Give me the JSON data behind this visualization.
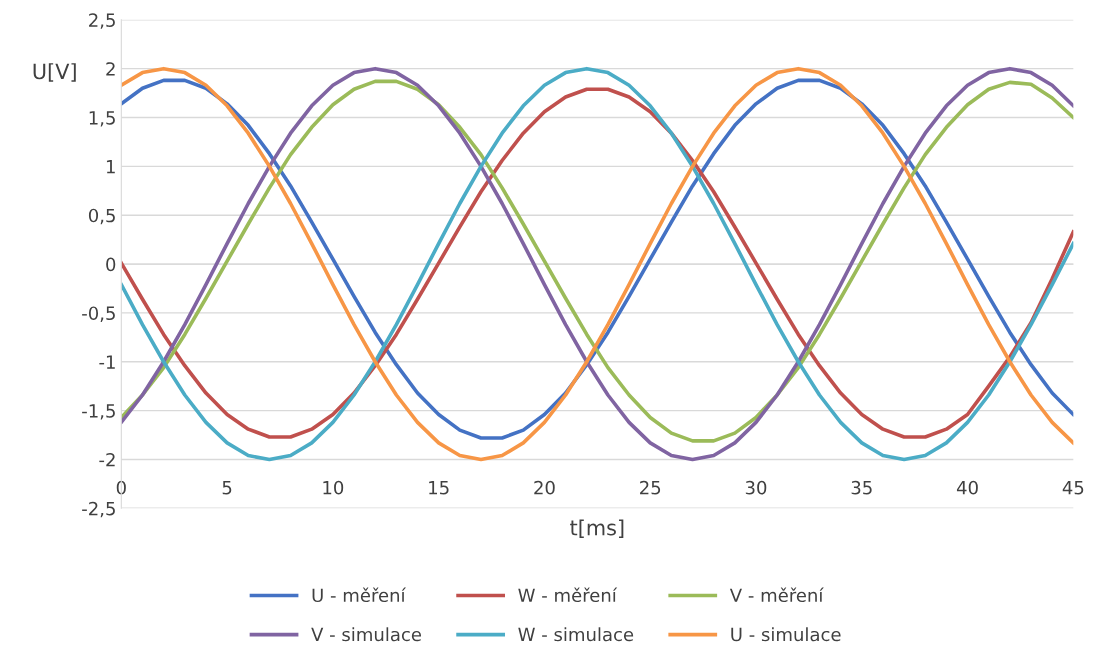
{
  "chart_data": {
    "type": "line",
    "xlabel": "t[ms]",
    "ylabel": "U[V]",
    "x": [
      0,
      1,
      2,
      3,
      4,
      5,
      6,
      7,
      8,
      9,
      10,
      11,
      12,
      13,
      14,
      15,
      16,
      17,
      18,
      19,
      20,
      21,
      22,
      23,
      24,
      25,
      26,
      27,
      28,
      29,
      30,
      31,
      32,
      33,
      34,
      35,
      36,
      37,
      38,
      39,
      40,
      41,
      42,
      43,
      44,
      45
    ],
    "series": [
      {
        "name": "U - měření",
        "color": "#4472c4",
        "values": [
          1.64,
          1.8,
          1.88,
          1.88,
          1.8,
          1.64,
          1.42,
          1.13,
          0.8,
          0.43,
          0.05,
          -0.33,
          -0.7,
          -1.03,
          -1.32,
          -1.54,
          -1.7,
          -1.78,
          -1.78,
          -1.7,
          -1.54,
          -1.32,
          -1.03,
          -0.7,
          -0.33,
          0.05,
          0.43,
          0.8,
          1.13,
          1.42,
          1.64,
          1.8,
          1.88,
          1.88,
          1.8,
          1.64,
          1.42,
          1.13,
          0.8,
          0.43,
          0.05,
          -0.33,
          -0.7,
          -1.03,
          -1.32,
          -1.54
        ]
      },
      {
        "name": "W - měření",
        "color": "#c0504d",
        "values": [
          0.01,
          -0.36,
          -0.72,
          -1.04,
          -1.32,
          -1.54,
          -1.69,
          -1.77,
          -1.77,
          -1.69,
          -1.54,
          -1.32,
          -1.04,
          -0.72,
          -0.36,
          0.01,
          0.38,
          0.74,
          1.06,
          1.34,
          1.56,
          1.71,
          1.79,
          1.79,
          1.71,
          1.56,
          1.34,
          1.06,
          0.74,
          0.38,
          0.01,
          -0.36,
          -0.72,
          -1.04,
          -1.32,
          -1.54,
          -1.69,
          -1.77,
          -1.77,
          -1.69,
          -1.54,
          -1.25,
          -0.95,
          -0.6,
          -0.15,
          0.33
        ]
      },
      {
        "name": "V - měření",
        "color": "#9bbb59",
        "values": [
          -1.57,
          -1.34,
          -1.06,
          -0.72,
          -0.35,
          0.03,
          0.41,
          0.78,
          1.12,
          1.4,
          1.63,
          1.79,
          1.87,
          1.87,
          1.79,
          1.63,
          1.4,
          1.12,
          0.78,
          0.41,
          0.03,
          -0.35,
          -0.72,
          -1.06,
          -1.34,
          -1.57,
          -1.73,
          -1.81,
          -1.81,
          -1.73,
          -1.57,
          -1.34,
          -1.06,
          -0.72,
          -0.35,
          0.03,
          0.41,
          0.78,
          1.12,
          1.4,
          1.63,
          1.79,
          1.86,
          1.84,
          1.7,
          1.5
        ]
      },
      {
        "name": "V - simulace",
        "color": "#8064a2",
        "values": [
          -1.62,
          -1.34,
          -1.0,
          -0.62,
          -0.21,
          0.21,
          0.62,
          1.0,
          1.34,
          1.62,
          1.83,
          1.96,
          2.0,
          1.96,
          1.83,
          1.62,
          1.34,
          1.0,
          0.62,
          0.21,
          -0.21,
          -0.62,
          -1.0,
          -1.34,
          -1.62,
          -1.83,
          -1.96,
          -2.0,
          -1.96,
          -1.83,
          -1.62,
          -1.34,
          -1.0,
          -0.62,
          -0.21,
          0.21,
          0.62,
          1.0,
          1.34,
          1.62,
          1.83,
          1.96,
          2.0,
          1.96,
          1.83,
          1.62
        ]
      },
      {
        "name": "W - simulace",
        "color": "#4bacc6",
        "values": [
          -0.21,
          -0.62,
          -1.0,
          -1.34,
          -1.62,
          -1.83,
          -1.96,
          -2.0,
          -1.96,
          -1.83,
          -1.62,
          -1.34,
          -1.0,
          -0.62,
          -0.21,
          0.21,
          0.62,
          1.0,
          1.34,
          1.62,
          1.83,
          1.96,
          2.0,
          1.96,
          1.83,
          1.62,
          1.34,
          1.0,
          0.62,
          0.21,
          -0.21,
          -0.62,
          -1.0,
          -1.34,
          -1.62,
          -1.83,
          -1.96,
          -2.0,
          -1.96,
          -1.83,
          -1.62,
          -1.34,
          -1.0,
          -0.62,
          -0.21,
          0.21
        ]
      },
      {
        "name": "U - simulace",
        "color": "#f79646",
        "values": [
          1.83,
          1.96,
          2.0,
          1.96,
          1.83,
          1.62,
          1.34,
          1.0,
          0.62,
          0.21,
          -0.21,
          -0.62,
          -1.0,
          -1.34,
          -1.62,
          -1.83,
          -1.96,
          -2.0,
          -1.96,
          -1.83,
          -1.62,
          -1.34,
          -1.0,
          -0.62,
          -0.21,
          0.21,
          0.62,
          1.0,
          1.34,
          1.62,
          1.83,
          1.96,
          2.0,
          1.96,
          1.83,
          1.62,
          1.34,
          1.0,
          0.62,
          0.21,
          -0.21,
          -0.62,
          -1.0,
          -1.34,
          -1.62,
          -1.83
        ]
      }
    ],
    "xlim": [
      0,
      45
    ],
    "xticks": [
      0,
      5,
      10,
      15,
      20,
      25,
      30,
      35,
      40,
      45
    ],
    "ylim": [
      -2.5,
      2.5
    ],
    "yticks": [
      {
        "value": -2.5,
        "label": "-2,5"
      },
      {
        "value": -2,
        "label": "-2"
      },
      {
        "value": -1.5,
        "label": "-1,5"
      },
      {
        "value": -1,
        "label": "-1"
      },
      {
        "value": -0.5,
        "label": "-0,5"
      },
      {
        "value": 0,
        "label": "0"
      },
      {
        "value": 0.5,
        "label": "0,5"
      },
      {
        "value": 1,
        "label": "1"
      },
      {
        "value": 1.5,
        "label": "1,5"
      },
      {
        "value": 2,
        "label": "2"
      },
      {
        "value": 2.5,
        "label": "2,5"
      }
    ],
    "grid": "y",
    "legend": "bottom",
    "marker": "none",
    "line_style": "solid"
  }
}
